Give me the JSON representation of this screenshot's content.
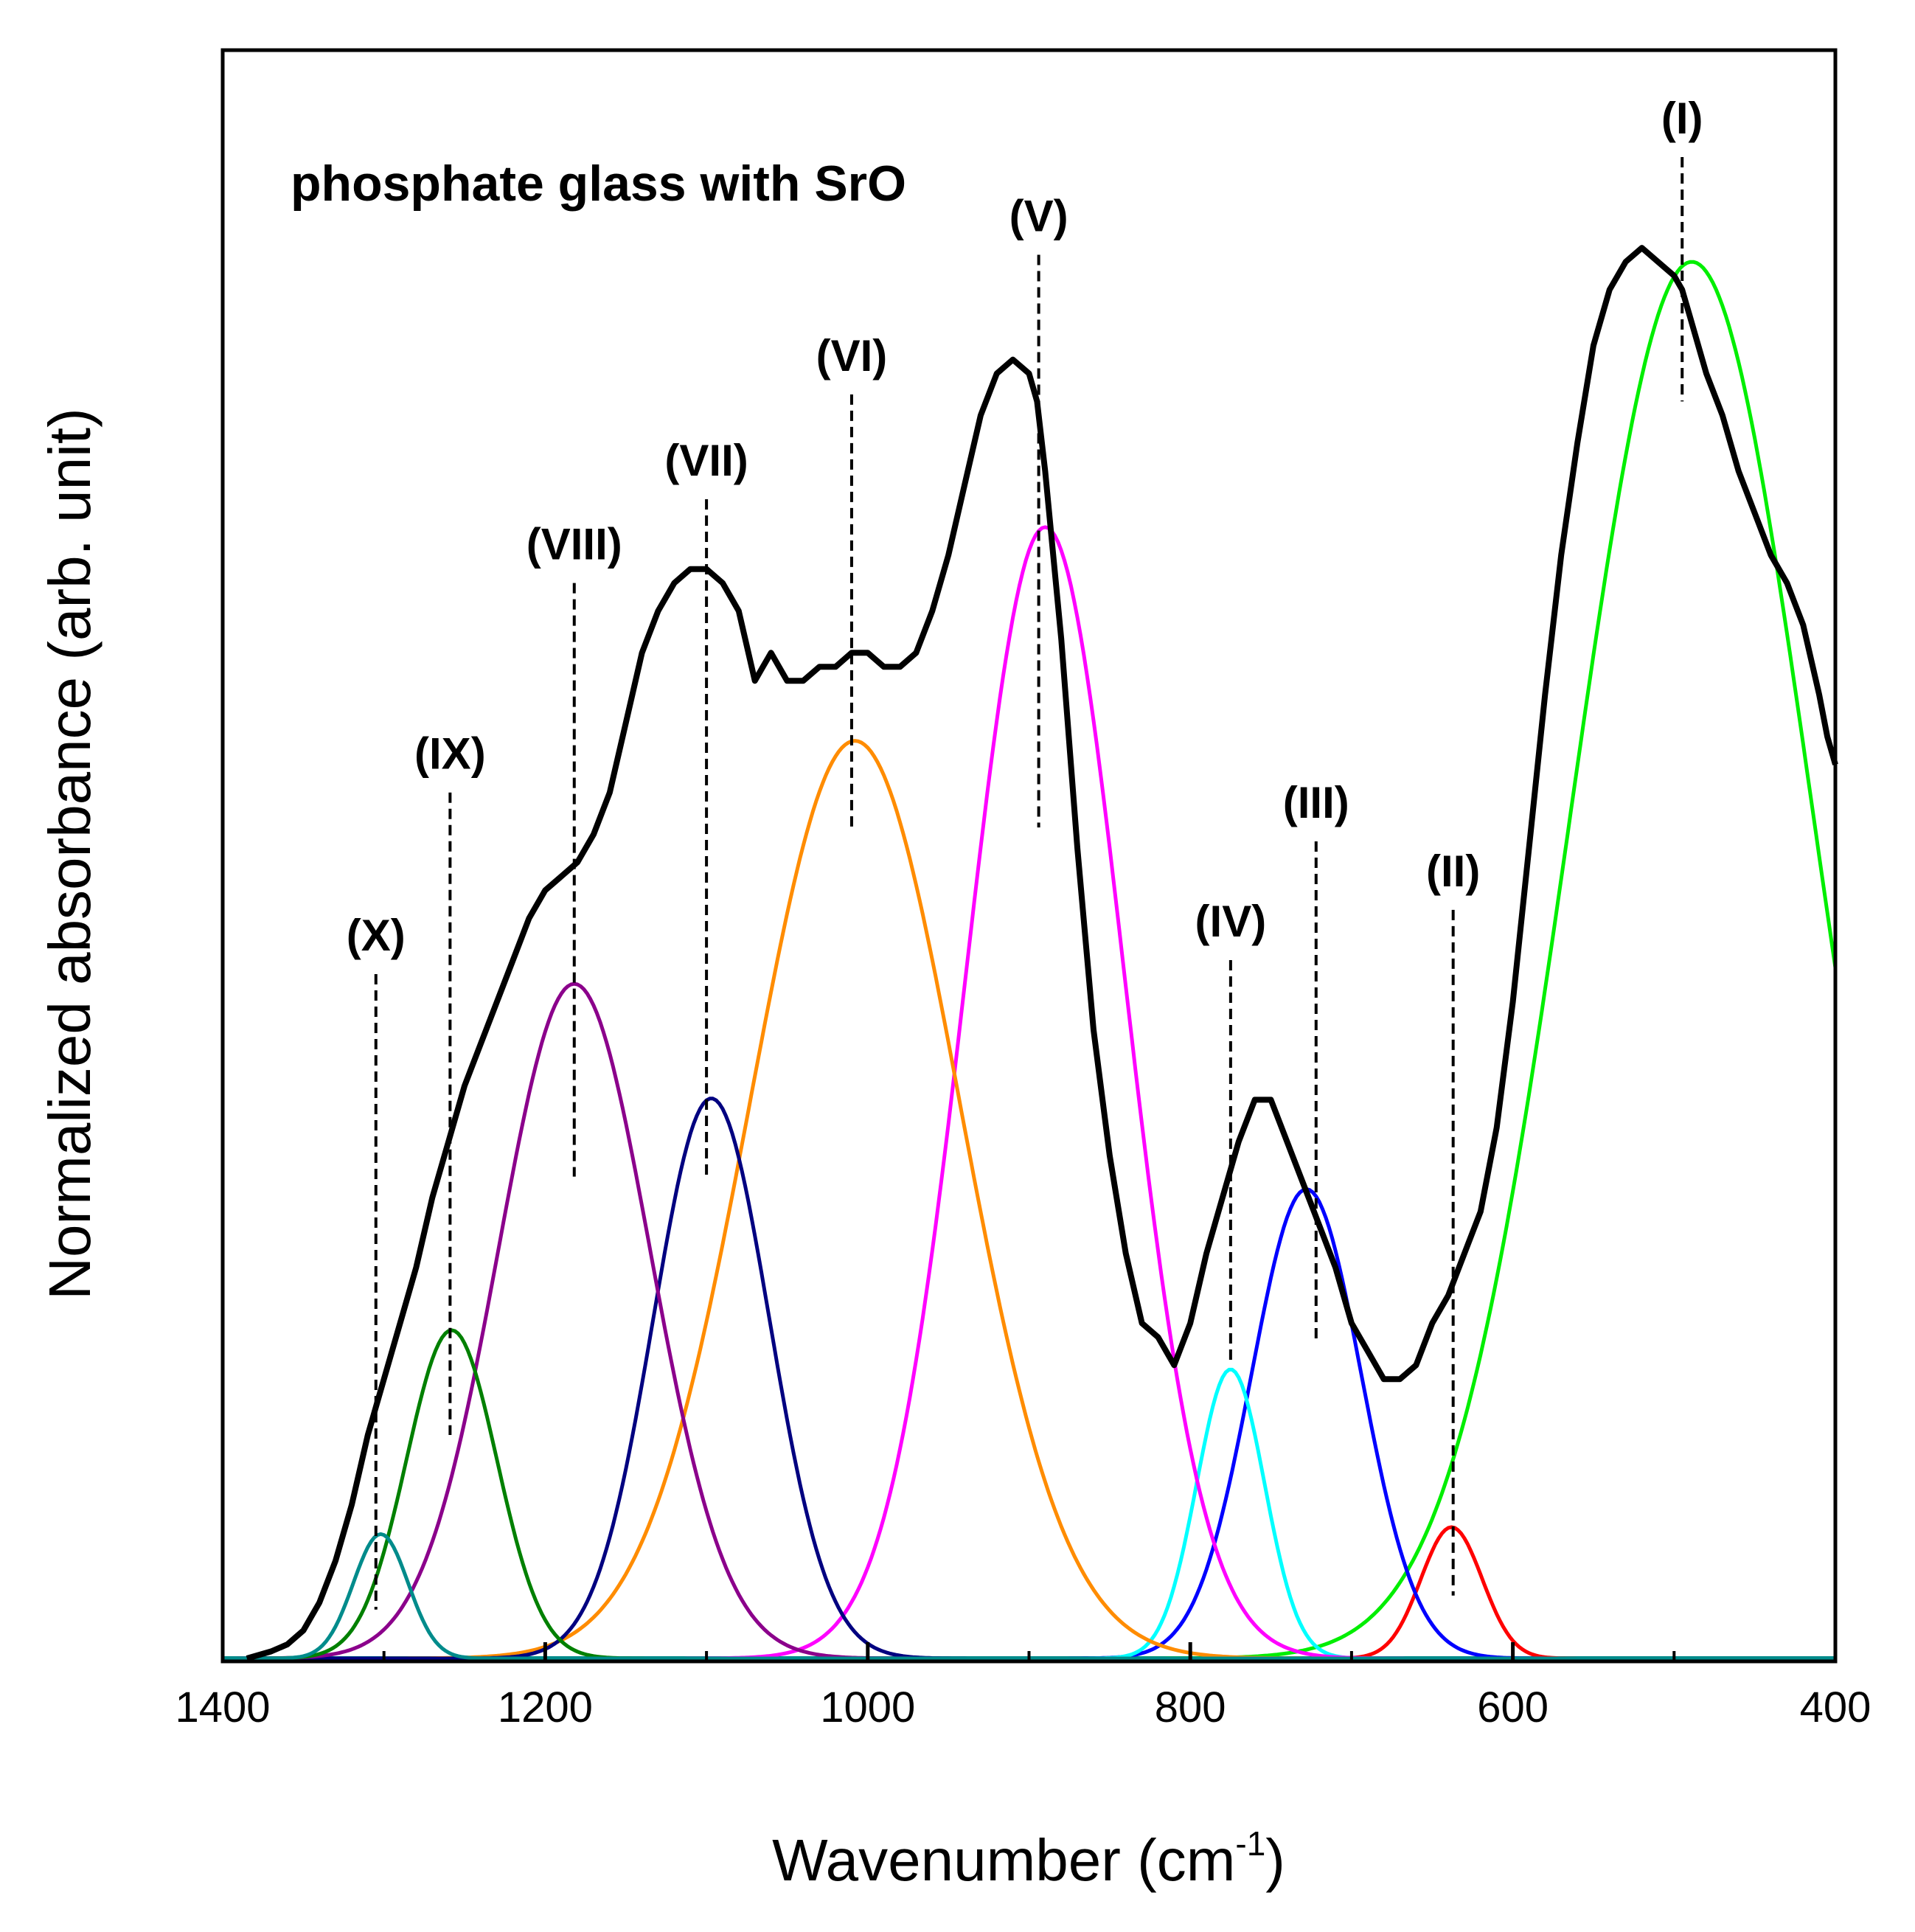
{
  "chart_data": {
    "type": "line",
    "title": "phosphate glass with SrO",
    "xlabel": "Wavenumber",
    "xlabel_unit_prefix": "(cm",
    "xlabel_unit_exp": "-1",
    "xlabel_unit_suffix": ")",
    "ylabel": "Normalized absorbance (arb. unit)",
    "xlim": [
      1400,
      400
    ],
    "ylim": [
      0,
      1.0
    ],
    "x_ticks": [
      "1400",
      "1200",
      "1000",
      "800",
      "600",
      "400"
    ],
    "x_tick_values": [
      1400,
      1200,
      1000,
      800,
      600,
      400
    ],
    "y_ticks_visible": false,
    "baseline_color": "#008b8b",
    "measured_spectrum": {
      "name": "measured",
      "color": "#000000",
      "x": [
        1385,
        1370,
        1360,
        1350,
        1340,
        1330,
        1320,
        1310,
        1300,
        1290,
        1280,
        1270,
        1260,
        1250,
        1240,
        1230,
        1220,
        1210,
        1200,
        1190,
        1180,
        1170,
        1160,
        1150,
        1140,
        1130,
        1120,
        1110,
        1100,
        1090,
        1080,
        1070,
        1065,
        1060,
        1055,
        1050,
        1040,
        1030,
        1020,
        1010,
        1000,
        990,
        980,
        970,
        960,
        950,
        940,
        930,
        920,
        910,
        900,
        895,
        890,
        880,
        870,
        860,
        850,
        840,
        830,
        820,
        810,
        800,
        790,
        780,
        770,
        760,
        750,
        740,
        730,
        720,
        710,
        700,
        690,
        680,
        670,
        660,
        650,
        640,
        630,
        620,
        610,
        600,
        590,
        580,
        570,
        560,
        550,
        540,
        530,
        520,
        510,
        505,
        500,
        495,
        490,
        485,
        480,
        470,
        460,
        450,
        440,
        430,
        420,
        410,
        405,
        400
      ],
      "y": [
        0.0,
        0.005,
        0.01,
        0.02,
        0.04,
        0.07,
        0.11,
        0.16,
        0.2,
        0.24,
        0.28,
        0.33,
        0.37,
        0.41,
        0.44,
        0.47,
        0.5,
        0.53,
        0.55,
        0.56,
        0.57,
        0.59,
        0.62,
        0.67,
        0.72,
        0.75,
        0.77,
        0.78,
        0.78,
        0.77,
        0.75,
        0.7,
        0.71,
        0.72,
        0.71,
        0.7,
        0.7,
        0.71,
        0.71,
        0.72,
        0.72,
        0.71,
        0.71,
        0.72,
        0.75,
        0.79,
        0.84,
        0.89,
        0.92,
        0.93,
        0.92,
        0.9,
        0.85,
        0.73,
        0.58,
        0.45,
        0.36,
        0.29,
        0.24,
        0.23,
        0.21,
        0.24,
        0.29,
        0.33,
        0.37,
        0.4,
        0.4,
        0.37,
        0.34,
        0.31,
        0.28,
        0.24,
        0.22,
        0.2,
        0.2,
        0.21,
        0.24,
        0.26,
        0.29,
        0.32,
        0.38,
        0.47,
        0.58,
        0.69,
        0.79,
        0.87,
        0.94,
        0.98,
        1.0,
        1.01,
        1.0,
        0.995,
        0.99,
        0.98,
        0.96,
        0.94,
        0.92,
        0.89,
        0.85,
        0.82,
        0.79,
        0.77,
        0.74,
        0.69,
        0.66,
        0.64
      ]
    },
    "series": [
      {
        "name": "(I)",
        "label": "(I)",
        "center": 489,
        "amplitude": 1.0,
        "sigma": 75,
        "color": "#00ee00"
      },
      {
        "name": "(II)",
        "label": "(II)",
        "center": 638,
        "amplitude": 0.094,
        "sigma": 19,
        "color": "#ff0000"
      },
      {
        "name": "(III)",
        "label": "(III)",
        "center": 728,
        "amplitude": 0.336,
        "sigma": 34,
        "color": "#0000ff"
      },
      {
        "name": "(IV)",
        "label": "(IV)",
        "center": 775,
        "amplitude": 0.207,
        "sigma": 21,
        "color": "#00ffff"
      },
      {
        "name": "(V)",
        "label": "(V)",
        "center": 890,
        "amplitude": 0.81,
        "sigma": 49,
        "color": "#ff00ff"
      },
      {
        "name": "(VI)",
        "label": "(VI)",
        "center": 1008,
        "amplitude": 0.657,
        "sigma": 65,
        "color": "#ff8c00"
      },
      {
        "name": "(VII)",
        "label": "(VII)",
        "center": 1097,
        "amplitude": 0.401,
        "sigma": 36,
        "color": "#000080"
      },
      {
        "name": "(VIII)",
        "label": "(VIII)",
        "center": 1182,
        "amplitude": 0.483,
        "sigma": 47,
        "color": "#8b008b"
      },
      {
        "name": "(IX)",
        "label": "(IX)",
        "center": 1258,
        "amplitude": 0.235,
        "sigma": 28,
        "color": "#008000"
      },
      {
        "name": "(X)",
        "label": "(X)",
        "center": 1302,
        "amplitude": 0.089,
        "sigma": 17,
        "color": "#008b8b"
      }
    ],
    "annotations": [
      {
        "label": "(I)",
        "x": 495,
        "line_top": 1.075,
        "line_bottom": 0.9
      },
      {
        "label": "(II)",
        "x": 637,
        "line_top": 0.536,
        "line_bottom": 0.045
      },
      {
        "label": "(III)",
        "x": 722,
        "line_top": 0.585,
        "line_bottom": 0.225
      },
      {
        "label": "(IV)",
        "x": 775,
        "line_top": 0.5,
        "line_bottom": 0.21
      },
      {
        "label": "(V)",
        "x": 894,
        "line_top": 1.005,
        "line_bottom": 0.595
      },
      {
        "label": "(VI)",
        "x": 1010,
        "line_top": 0.905,
        "line_bottom": 0.595
      },
      {
        "label": "(VII)",
        "x": 1100,
        "line_top": 0.83,
        "line_bottom": 0.345
      },
      {
        "label": "(VIII)",
        "x": 1182,
        "line_top": 0.77,
        "line_bottom": 0.345
      },
      {
        "label": "(IX)",
        "x": 1259,
        "line_top": 0.62,
        "line_bottom": 0.16
      },
      {
        "label": "(X)",
        "x": 1305,
        "line_top": 0.49,
        "line_bottom": 0.035
      }
    ]
  }
}
